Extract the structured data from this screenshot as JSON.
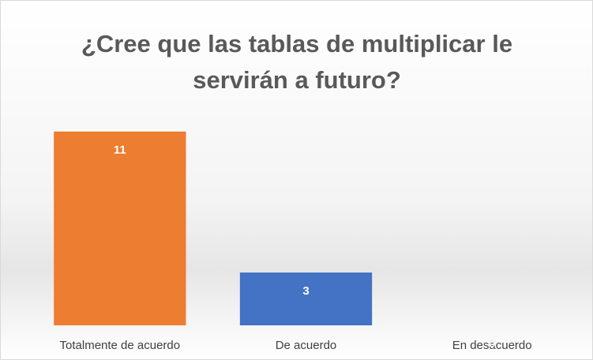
{
  "chart_data": {
    "type": "bar",
    "title": "¿Cree que las tablas de multiplicar le servirán a futuro?",
    "categories": [
      "Totalmente de acuerdo",
      "De acuerdo",
      "En desacuerdo"
    ],
    "values": [
      11,
      3,
      0
    ],
    "colors": [
      "#ed7d31",
      "#4472c4",
      "#a5a5a5"
    ]
  }
}
